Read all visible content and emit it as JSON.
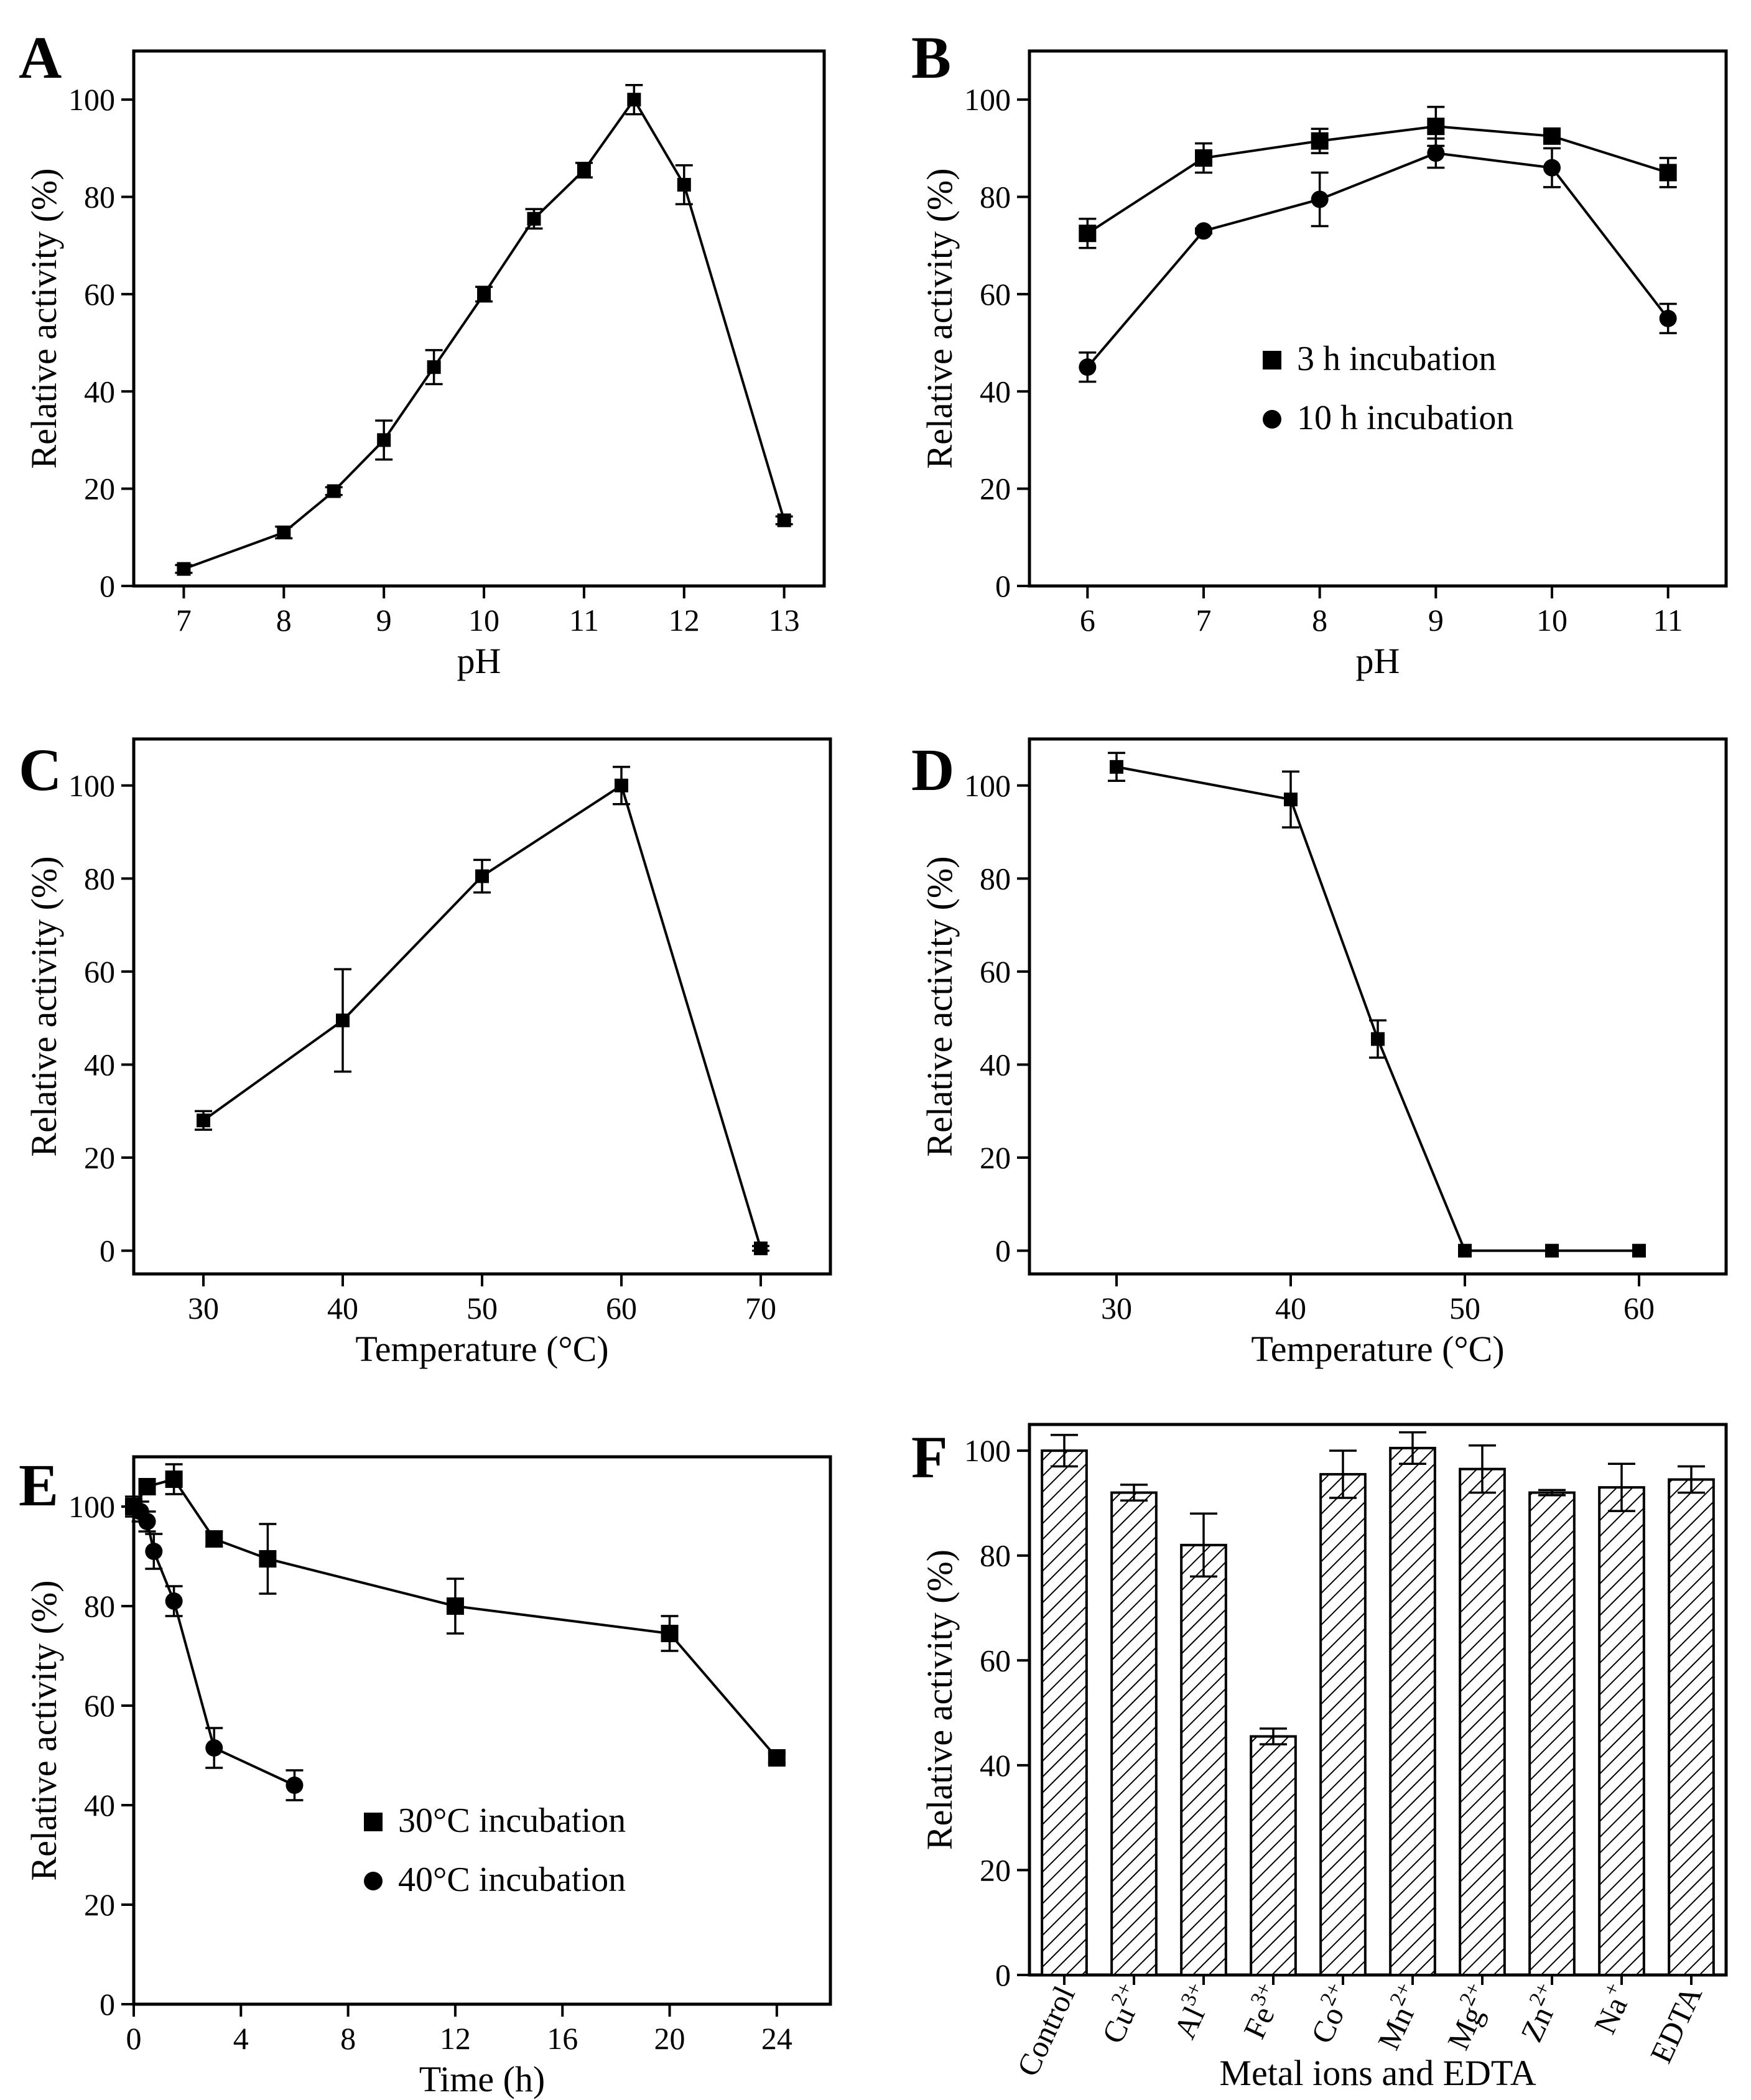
{
  "chart_data": [
    {
      "panel": "A",
      "type": "line",
      "xlabel": "pH",
      "ylabel": "Relative activity (%)",
      "xlim": [
        6.5,
        13.4
      ],
      "ylim": [
        0,
        110
      ],
      "xticks": [
        7,
        8,
        9,
        10,
        11,
        12,
        13
      ],
      "yticks": [
        0,
        20,
        40,
        60,
        80,
        100
      ],
      "series": [
        {
          "name": "",
          "marker": "square",
          "x": [
            7,
            8,
            8.5,
            9,
            9.5,
            10,
            10.5,
            11,
            11.5,
            12,
            13
          ],
          "y": [
            3.5,
            11,
            19.5,
            30,
            45,
            60,
            75.5,
            85.5,
            100,
            82.5,
            13.5
          ],
          "err": [
            0.8,
            1.2,
            0.8,
            4,
            3.5,
            1.5,
            2,
            1.5,
            3,
            4,
            0.8
          ]
        }
      ]
    },
    {
      "panel": "B",
      "type": "line",
      "xlabel": "pH",
      "ylabel": "Relative activity (%)",
      "xlim": [
        5.5,
        11.5
      ],
      "ylim": [
        0,
        110
      ],
      "xticks": [
        6,
        7,
        8,
        9,
        10,
        11
      ],
      "yticks": [
        0,
        20,
        40,
        60,
        80,
        100
      ],
      "legend": "center-right",
      "series": [
        {
          "name": "3 h incubation",
          "marker": "square",
          "x": [
            6,
            7,
            8,
            9,
            10,
            11
          ],
          "y": [
            72.5,
            88,
            91.5,
            94.5,
            92.5,
            85
          ],
          "err": [
            3,
            3,
            2.5,
            4,
            1.5,
            3
          ]
        },
        {
          "name": "10 h incubation",
          "marker": "circle",
          "x": [
            6,
            7,
            8,
            9,
            10,
            11
          ],
          "y": [
            45,
            73,
            79.5,
            89,
            86,
            55
          ],
          "err": [
            3,
            0.5,
            5.5,
            3,
            4,
            3
          ]
        }
      ]
    },
    {
      "panel": "C",
      "type": "line",
      "xlabel": "Temperature (°C)",
      "ylabel": "Relative activity (%)",
      "xlim": [
        25,
        75
      ],
      "ylim": [
        -5,
        110
      ],
      "xticks": [
        30,
        40,
        50,
        60,
        70
      ],
      "yticks": [
        0,
        20,
        40,
        60,
        80,
        100
      ],
      "series": [
        {
          "name": "",
          "marker": "square",
          "x": [
            30,
            40,
            50,
            60,
            70
          ],
          "y": [
            28,
            49.5,
            80.5,
            100,
            0.5
          ],
          "err": [
            2,
            11,
            3.5,
            4,
            0.5
          ]
        }
      ]
    },
    {
      "panel": "D",
      "type": "line",
      "xlabel": "Temperature (°C)",
      "ylabel": "Relative activity (%)",
      "xlim": [
        25,
        65
      ],
      "ylim": [
        -5,
        110
      ],
      "xticks": [
        30,
        40,
        50,
        60
      ],
      "yticks": [
        0,
        20,
        40,
        60,
        80,
        100
      ],
      "series": [
        {
          "name": "",
          "marker": "square",
          "x": [
            30,
            40,
            45,
            50,
            55,
            60
          ],
          "y": [
            104,
            97,
            45.5,
            0,
            0,
            0
          ],
          "err": [
            3,
            6,
            4,
            0,
            0,
            0
          ]
        }
      ]
    },
    {
      "panel": "E",
      "type": "line",
      "xlabel": "Time (h)",
      "ylabel": "Relative activity (%)",
      "xlim": [
        0,
        26
      ],
      "ylim": [
        0,
        110
      ],
      "xticks": [
        0,
        4,
        8,
        12,
        16,
        20,
        24
      ],
      "yticks": [
        0,
        20,
        40,
        60,
        80,
        100
      ],
      "legend": "lower-center",
      "series": [
        {
          "name": "30°C incubation",
          "marker": "square",
          "x": [
            0,
            0.5,
            1.5,
            3,
            5,
            12,
            20,
            24
          ],
          "y": [
            100,
            104,
            105.5,
            93.5,
            89.5,
            80,
            74.5,
            49.5
          ],
          "err": [
            2,
            1.5,
            3,
            1.5,
            7,
            5.5,
            3.5,
            1
          ]
        },
        {
          "name": "40°C incubation",
          "marker": "circle",
          "x": [
            0,
            0.25,
            0.5,
            0.75,
            1.5,
            3,
            6
          ],
          "y": [
            100,
            99,
            97,
            91,
            81,
            51.5,
            44
          ],
          "err": [
            1,
            2,
            2,
            3.5,
            3,
            4,
            3
          ]
        }
      ]
    },
    {
      "panel": "F",
      "type": "bar",
      "xlabel": "Metal ions and EDTA",
      "ylabel": "Relative activity (%)",
      "ylim": [
        0,
        105
      ],
      "yticks": [
        0,
        20,
        40,
        60,
        80,
        100
      ],
      "categories": [
        "Control",
        "Cu2+",
        "Al3+",
        "Fe3+",
        "Co2+",
        "Mn2+",
        "Mg2+",
        "Zn2+",
        "Na+",
        "EDTA"
      ],
      "category_labels": [
        {
          "base": "Control",
          "sup": ""
        },
        {
          "base": "Cu",
          "sup": "2+"
        },
        {
          "base": "Al",
          "sup": "3+"
        },
        {
          "base": "Fe",
          "sup": "3+"
        },
        {
          "base": "Co",
          "sup": "2+"
        },
        {
          "base": "Mn",
          "sup": "2+"
        },
        {
          "base": "Mg",
          "sup": "2+"
        },
        {
          "base": "Zn",
          "sup": "2+"
        },
        {
          "base": "Na",
          "sup": "+"
        },
        {
          "base": "EDTA",
          "sup": ""
        }
      ],
      "values": [
        100,
        92,
        82,
        45.5,
        95.5,
        100.5,
        96.5,
        92,
        93,
        94.5
      ],
      "err": [
        3,
        1.5,
        6,
        1.5,
        4.5,
        3,
        4.5,
        0.5,
        4.5,
        2.5
      ]
    }
  ]
}
